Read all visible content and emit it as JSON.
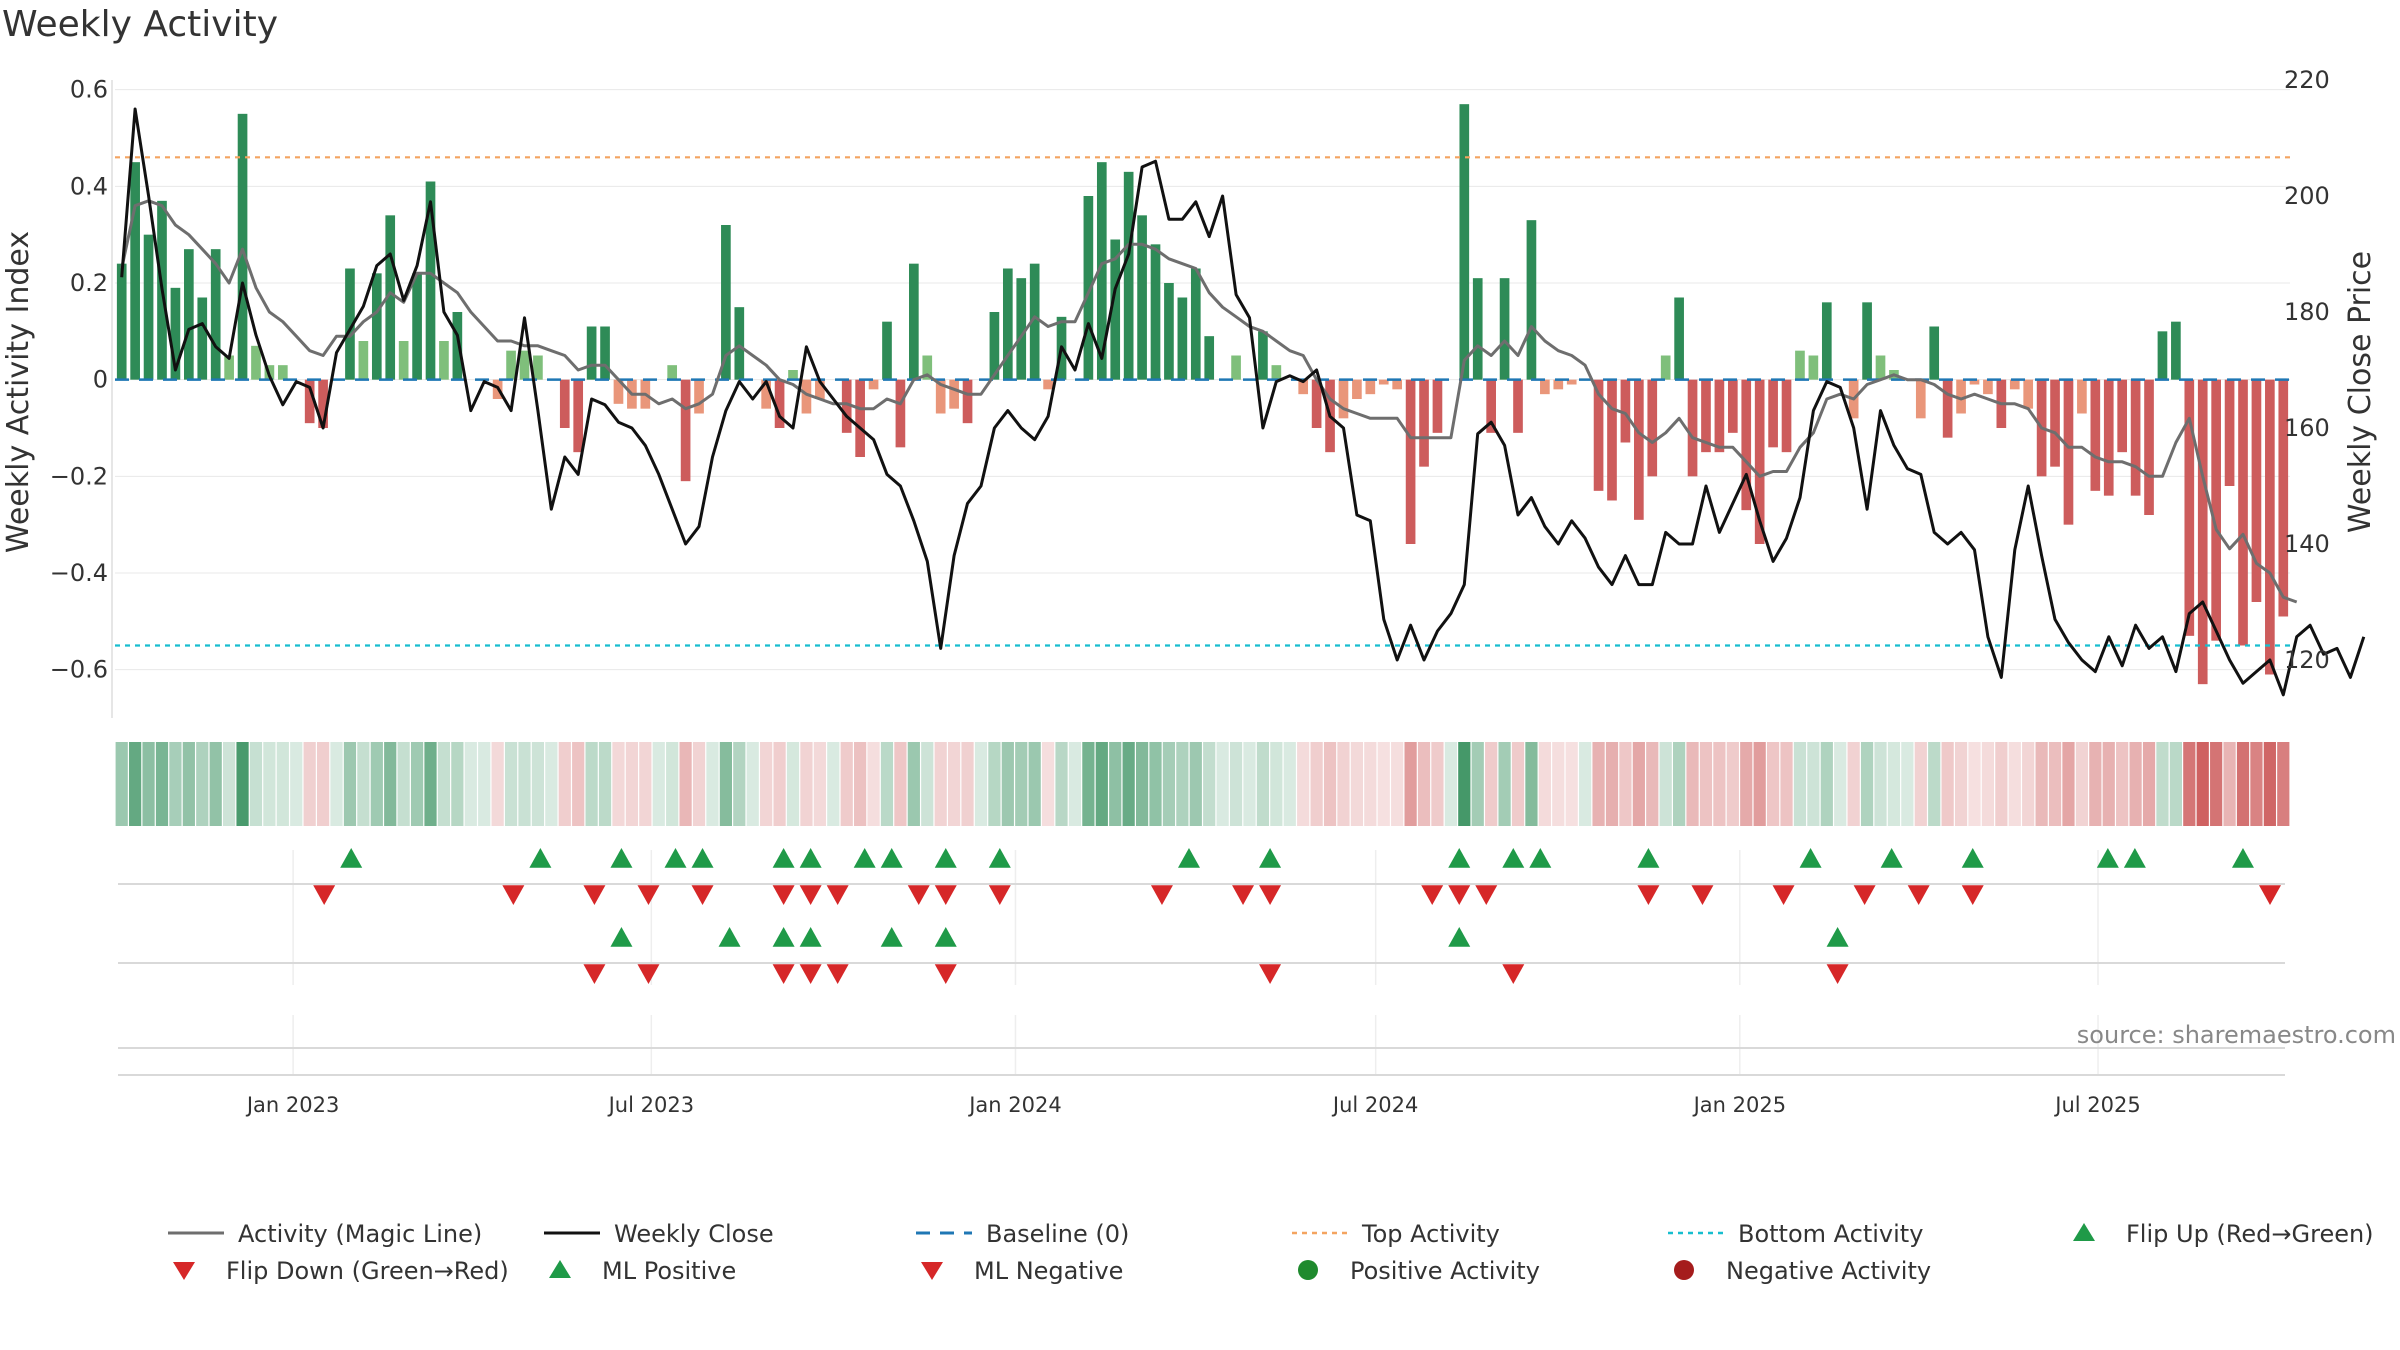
{
  "chart_data": {
    "type": "bar",
    "title": "Weekly Activity",
    "ylabel_left": "Weekly Activity Index",
    "ylabel_right": "Weekly Close Price",
    "source": "source: sharemaestro.com",
    "ylim_left": [
      -0.7,
      0.62
    ],
    "ylim_right": [
      110,
      220
    ],
    "yticks_left": [
      {
        "v": 0.6,
        "label": "0.6"
      },
      {
        "v": 0.4,
        "label": "0.4"
      },
      {
        "v": 0.2,
        "label": "0.2"
      },
      {
        "v": 0,
        "label": "0"
      },
      {
        "v": -0.2,
        "label": "−0.2"
      },
      {
        "v": -0.4,
        "label": "−0.4"
      },
      {
        "v": -0.6,
        "label": "−0.6"
      }
    ],
    "yticks_right": [
      {
        "v": 220,
        "label": "220"
      },
      {
        "v": 200,
        "label": "200"
      },
      {
        "v": 180,
        "label": "180"
      },
      {
        "v": 160,
        "label": "160"
      },
      {
        "v": 140,
        "label": "140"
      },
      {
        "v": 120,
        "label": "120"
      }
    ],
    "x_start": "2022-10-03",
    "x_end": "2025-10-06",
    "date_ticks": [
      {
        "date": "2023-01-01",
        "label": "Jan 2023"
      },
      {
        "date": "2023-07-01",
        "label": "Jul 2023"
      },
      {
        "date": "2024-01-01",
        "label": "Jan 2024"
      },
      {
        "date": "2024-07-01",
        "label": "Jul 2024"
      },
      {
        "date": "2025-01-01",
        "label": "Jan 2025"
      },
      {
        "date": "2025-07-01",
        "label": "Jul 2025"
      }
    ],
    "top_activity": 0.46,
    "bottom_activity": -0.55,
    "activity": [
      0.24,
      0.45,
      0.3,
      0.37,
      0.19,
      0.27,
      0.17,
      0.27,
      0.05,
      0.55,
      0.07,
      0.03,
      0.03,
      0.0,
      -0.09,
      -0.1,
      0.0,
      0.23,
      0.08,
      0.22,
      0.34,
      0.08,
      0.22,
      0.41,
      0.08,
      0.14,
      0.0,
      0.0,
      -0.04,
      0.06,
      0.06,
      0.05,
      0.0,
      -0.1,
      -0.15,
      0.11,
      0.11,
      -0.05,
      -0.06,
      -0.06,
      0.0,
      0.03,
      -0.21,
      -0.07,
      0.0,
      0.32,
      0.15,
      0.0,
      -0.06,
      -0.1,
      0.02,
      -0.07,
      -0.04,
      0.0,
      -0.11,
      -0.16,
      -0.02,
      0.12,
      -0.14,
      0.24,
      0.05,
      -0.07,
      -0.06,
      -0.09,
      0.0,
      0.14,
      0.23,
      0.21,
      0.24,
      -0.02,
      0.13,
      0.0,
      0.38,
      0.45,
      0.29,
      0.43,
      0.34,
      0.28,
      0.2,
      0.17,
      0.23,
      0.09,
      0.0,
      0.05,
      0.0,
      0.1,
      0.03,
      0.0,
      -0.03,
      -0.1,
      -0.15,
      -0.08,
      -0.04,
      -0.03,
      -0.01,
      -0.02,
      -0.34,
      -0.18,
      -0.11,
      0.0,
      0.57,
      0.21,
      -0.11,
      0.21,
      -0.11,
      0.33,
      -0.03,
      -0.02,
      -0.01,
      0.0,
      -0.23,
      -0.25,
      -0.13,
      -0.29,
      -0.2,
      0.05,
      0.17,
      -0.2,
      -0.15,
      -0.15,
      -0.11,
      -0.27,
      -0.34,
      -0.14,
      -0.15,
      0.06,
      0.05,
      0.16,
      0.0,
      -0.08,
      0.16,
      0.05,
      0.02,
      0.0,
      -0.08,
      0.11,
      -0.12,
      -0.07,
      -0.01,
      -0.03,
      -0.1,
      -0.02,
      -0.06,
      -0.2,
      -0.18,
      -0.3,
      -0.07,
      -0.23,
      -0.24,
      -0.15,
      -0.24,
      -0.28,
      0.1,
      0.12,
      -0.53,
      -0.63,
      -0.54,
      -0.22,
      -0.55,
      -0.46,
      -0.61,
      -0.49
    ],
    "magic_line": [
      0.23,
      0.36,
      0.37,
      0.36,
      0.32,
      0.3,
      0.27,
      0.24,
      0.2,
      0.27,
      0.19,
      0.14,
      0.12,
      0.09,
      0.06,
      0.05,
      0.09,
      0.09,
      0.12,
      0.14,
      0.18,
      0.16,
      0.22,
      0.22,
      0.2,
      0.18,
      0.14,
      0.11,
      0.08,
      0.08,
      0.07,
      0.07,
      0.06,
      0.05,
      0.02,
      0.03,
      0.03,
      0.0,
      -0.03,
      -0.03,
      -0.05,
      -0.04,
      -0.06,
      -0.05,
      -0.03,
      0.05,
      0.07,
      0.05,
      0.03,
      0.0,
      -0.01,
      -0.03,
      -0.04,
      -0.05,
      -0.05,
      -0.06,
      -0.06,
      -0.04,
      -0.05,
      0.0,
      0.01,
      -0.01,
      -0.02,
      -0.03,
      -0.03,
      0.01,
      0.05,
      0.09,
      0.13,
      0.11,
      0.12,
      0.12,
      0.18,
      0.24,
      0.25,
      0.28,
      0.28,
      0.27,
      0.25,
      0.24,
      0.23,
      0.18,
      0.15,
      0.13,
      0.11,
      0.1,
      0.08,
      0.06,
      0.05,
      0.0,
      -0.04,
      -0.06,
      -0.07,
      -0.08,
      -0.08,
      -0.08,
      -0.12,
      -0.12,
      -0.12,
      -0.12,
      0.04,
      0.07,
      0.05,
      0.08,
      0.05,
      0.11,
      0.08,
      0.06,
      0.05,
      0.03,
      -0.03,
      -0.06,
      -0.07,
      -0.11,
      -0.13,
      -0.11,
      -0.08,
      -0.12,
      -0.13,
      -0.14,
      -0.14,
      -0.17,
      -0.2,
      -0.19,
      -0.19,
      -0.14,
      -0.11,
      -0.04,
      -0.03,
      -0.04,
      -0.01,
      0.0,
      0.01,
      0.0,
      0.0,
      -0.01,
      -0.03,
      -0.04,
      -0.03,
      -0.04,
      -0.05,
      -0.05,
      -0.06,
      -0.1,
      -0.11,
      -0.14,
      -0.14,
      -0.16,
      -0.17,
      -0.17,
      -0.18,
      -0.2,
      -0.2,
      -0.13,
      -0.08,
      -0.2,
      -0.31,
      -0.35,
      -0.32,
      -0.38,
      -0.4,
      -0.45,
      -0.46
    ],
    "weekly_close": [
      186,
      215,
      200,
      184,
      170,
      177,
      178,
      174,
      172,
      185,
      176,
      169,
      164,
      168,
      167,
      160,
      173,
      177,
      181,
      188,
      190,
      182,
      188,
      199,
      180,
      176,
      163,
      168,
      167,
      163,
      179,
      163,
      146,
      155,
      152,
      165,
      164,
      161,
      160,
      157,
      152,
      146,
      140,
      143,
      155,
      163,
      168,
      165,
      168,
      162,
      160,
      174,
      168,
      165,
      162,
      160,
      158,
      152,
      150,
      144,
      137,
      122,
      138,
      147,
      150,
      160,
      163,
      160,
      158,
      162,
      174,
      170,
      178,
      172,
      184,
      190,
      205,
      206,
      196,
      196,
      199,
      193,
      200,
      183,
      179,
      160,
      168,
      169,
      168,
      170,
      162,
      160,
      145,
      144,
      127,
      120,
      126,
      120,
      125,
      128,
      133,
      159,
      161,
      157,
      145,
      148,
      143,
      140,
      144,
      141,
      136,
      133,
      138,
      133,
      133,
      142,
      140,
      140,
      150,
      142,
      147,
      152,
      144,
      137,
      141,
      148,
      163,
      168,
      167,
      160,
      146,
      163,
      157,
      153,
      152,
      142,
      140,
      142,
      139,
      124,
      117,
      139,
      150,
      138,
      127,
      123,
      120,
      118,
      124,
      119,
      126,
      122,
      124,
      118,
      128,
      130,
      125,
      120,
      116,
      118,
      120,
      114,
      124,
      126,
      121,
      122,
      117,
      124
    ],
    "flip_up": [
      8,
      15,
      18,
      20,
      21,
      24,
      25,
      27,
      28,
      30,
      32,
      39,
      42,
      49,
      51,
      52,
      56,
      62,
      65,
      68,
      73,
      74,
      78
    ],
    "flip_down": [
      7,
      14,
      17,
      19,
      21,
      24,
      25,
      26,
      29,
      30,
      32,
      38,
      41,
      42,
      48,
      49,
      50,
      56,
      58,
      61,
      64,
      66,
      68,
      79
    ],
    "ml_positive": [
      18,
      22,
      24,
      25,
      28,
      30,
      49,
      63
    ],
    "ml_negative": [
      17,
      19,
      24,
      25,
      26,
      30,
      42,
      51,
      63
    ],
    "legend": [
      {
        "key": "magic",
        "label": "Activity (Magic Line)"
      },
      {
        "key": "close",
        "label": "Weekly Close"
      },
      {
        "key": "baseline",
        "label": "Baseline (0)"
      },
      {
        "key": "top",
        "label": "Top Activity"
      },
      {
        "key": "bottom",
        "label": "Bottom Activity"
      },
      {
        "key": "flipup",
        "label": "Flip Up (Red→Green)"
      },
      {
        "key": "flipdown",
        "label": "Flip Down (Green→Red)"
      },
      {
        "key": "mlpos",
        "label": "ML Positive"
      },
      {
        "key": "mlneg",
        "label": "ML Negative"
      },
      {
        "key": "posact",
        "label": "Positive Activity"
      },
      {
        "key": "negact",
        "label": "Negative Activity"
      }
    ],
    "colors": {
      "pos_strong": "#2e8b57",
      "pos_light": "#7fbf7b",
      "neg_strong": "#cd5c5c",
      "neg_light": "#e9967a",
      "magic": "#6e6e6e",
      "close": "#111111",
      "baseline": "#1f77b4",
      "top": "#f4a460",
      "bottom": "#17becf",
      "marker_green": "#1f9a48",
      "marker_red": "#d62728",
      "dot_green": "#1f8a2e",
      "dot_red": "#a51c1c"
    }
  }
}
